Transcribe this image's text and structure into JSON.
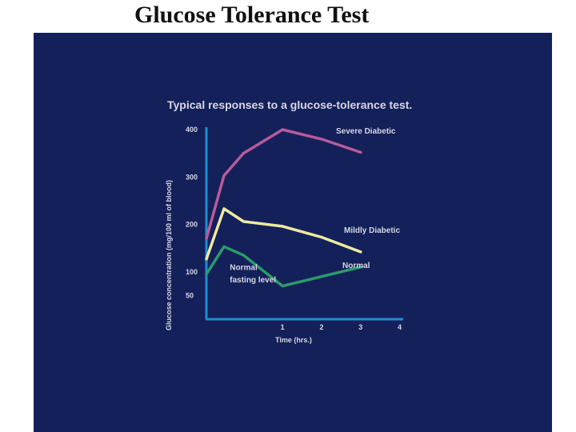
{
  "slide": {
    "title": "Glucose Tolerance Test"
  },
  "colors": {
    "panel_background": "#14205a",
    "axis": "#1c8fd1",
    "text": "#d6d8e4"
  },
  "chart_data": {
    "type": "line",
    "title": "Typical responses to a glucose-tolerance test.",
    "xlabel": "Time (hrs.)",
    "ylabel": "Glucose concentration (mg/100 ml of blood)",
    "xlim": [
      -0.95,
      4.05
    ],
    "ylim": [
      0,
      400
    ],
    "x_ticks": [
      {
        "value": 1,
        "label": "1"
      },
      {
        "value": 2,
        "label": "2"
      },
      {
        "value": 3,
        "label": "3"
      },
      {
        "value": 4,
        "label": "4"
      }
    ],
    "y_ticks": [
      {
        "value": 400,
        "label": "400"
      },
      {
        "value": 300,
        "label": "300"
      },
      {
        "value": 200,
        "label": "200"
      },
      {
        "value": 100,
        "label": "100"
      },
      {
        "value": 50,
        "label": "50"
      }
    ],
    "grid": false,
    "legend": "inline labels",
    "series": [
      {
        "name": "Severe Diabetic",
        "color": "#b65b9a",
        "points": [
          {
            "x": -0.95,
            "y": 170
          },
          {
            "x": -0.5,
            "y": 303
          },
          {
            "x": 0,
            "y": 350
          },
          {
            "x": 1,
            "y": 400
          },
          {
            "x": 2,
            "y": 380
          },
          {
            "x": 3,
            "y": 352
          }
        ]
      },
      {
        "name": "Mildly Diabetic",
        "color": "#eeeaa0",
        "points": [
          {
            "x": -0.95,
            "y": 127
          },
          {
            "x": -0.5,
            "y": 233
          },
          {
            "x": 0,
            "y": 206
          },
          {
            "x": 1,
            "y": 196
          },
          {
            "x": 2,
            "y": 173
          },
          {
            "x": 3,
            "y": 142
          }
        ]
      },
      {
        "name": "Normal",
        "color": "#2a9b6a",
        "points": [
          {
            "x": -0.95,
            "y": 95
          },
          {
            "x": -0.5,
            "y": 153
          },
          {
            "x": 0,
            "y": 135
          },
          {
            "x": 1,
            "y": 70
          },
          {
            "x": 2,
            "y": 90
          },
          {
            "x": 3,
            "y": 110
          }
        ]
      }
    ],
    "annotations": [
      {
        "label": "Normal",
        "x": -0.35,
        "y": 104
      },
      {
        "label": "fasting level",
        "x": -0.35,
        "y": 78
      }
    ]
  }
}
